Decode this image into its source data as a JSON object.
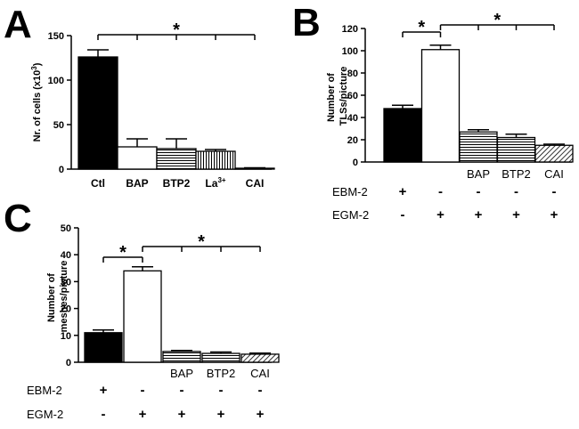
{
  "panels": {
    "A": {
      "letter": "A"
    },
    "B": {
      "letter": "B"
    },
    "C": {
      "letter": "C"
    }
  },
  "colors": {
    "black": "#000000",
    "white": "#ffffff"
  },
  "chart_data": [
    {
      "id": "A",
      "type": "bar",
      "ylabel_main": "Nr. of cells (x10",
      "ylabel_exp": "3",
      "ylabel_end": ")",
      "ylim": [
        0,
        150
      ],
      "yticks": [
        "0",
        "50",
        "100",
        "150"
      ],
      "categories": [
        "Ctl",
        "BAP",
        "BTP2",
        "La",
        "CAI"
      ],
      "category_sup": [
        "",
        "",
        "",
        "3+",
        ""
      ],
      "values": [
        126,
        25,
        23,
        20,
        1
      ],
      "errors": [
        8,
        9,
        11,
        2,
        0.5
      ],
      "fills": [
        "solid",
        "white",
        "hstripe",
        "vstripe",
        "white"
      ],
      "significance": {
        "label": "*",
        "from": 0,
        "to": [
          1,
          2,
          3,
          4
        ]
      }
    },
    {
      "id": "B",
      "type": "bar",
      "ylabel_lines": [
        "Number of",
        "TLSs/picture"
      ],
      "ylim": [
        0,
        120
      ],
      "yticks": [
        "0",
        "20",
        "40",
        "60",
        "80",
        "100",
        "120"
      ],
      "categories": [
        "",
        "",
        "BAP",
        "BTP2",
        "CAI"
      ],
      "values": [
        48,
        101,
        27,
        22,
        15
      ],
      "errors": [
        3,
        4,
        2,
        3,
        1
      ],
      "fills": [
        "solid",
        "white",
        "hstripe",
        "hstripe",
        "diag"
      ],
      "conditions": [
        {
          "name": "EBM-2",
          "signs": [
            "+",
            "-",
            "-",
            "-",
            "-"
          ]
        },
        {
          "name": "EGM-2",
          "signs": [
            "-",
            "+",
            "+",
            "+",
            "+"
          ]
        }
      ],
      "significance": [
        {
          "label": "*",
          "from": 0,
          "to": [
            1
          ]
        },
        {
          "label": "*",
          "from": 1,
          "to": [
            2,
            3,
            4
          ]
        }
      ]
    },
    {
      "id": "C",
      "type": "bar",
      "ylabel_lines": [
        "Number of",
        "meshes/picture"
      ],
      "ylim": [
        0,
        50
      ],
      "yticks": [
        "0",
        "10",
        "20",
        "30",
        "40",
        "50"
      ],
      "categories": [
        "",
        "",
        "BAP",
        "BTP2",
        "CAI"
      ],
      "values": [
        11,
        34,
        4,
        3.3,
        3
      ],
      "errors": [
        1,
        1.5,
        0.4,
        0.5,
        0.4
      ],
      "fills": [
        "solid",
        "white",
        "hstripe",
        "hstripe",
        "diag"
      ],
      "conditions": [
        {
          "name": "EBM-2",
          "signs": [
            "+",
            "-",
            "-",
            "-",
            "-"
          ]
        },
        {
          "name": "EGM-2",
          "signs": [
            "-",
            "+",
            "+",
            "+",
            "+"
          ]
        }
      ],
      "significance": [
        {
          "label": "*",
          "from": 0,
          "to": [
            1
          ]
        },
        {
          "label": "*",
          "from": 1,
          "to": [
            2,
            3,
            4
          ]
        }
      ]
    }
  ]
}
